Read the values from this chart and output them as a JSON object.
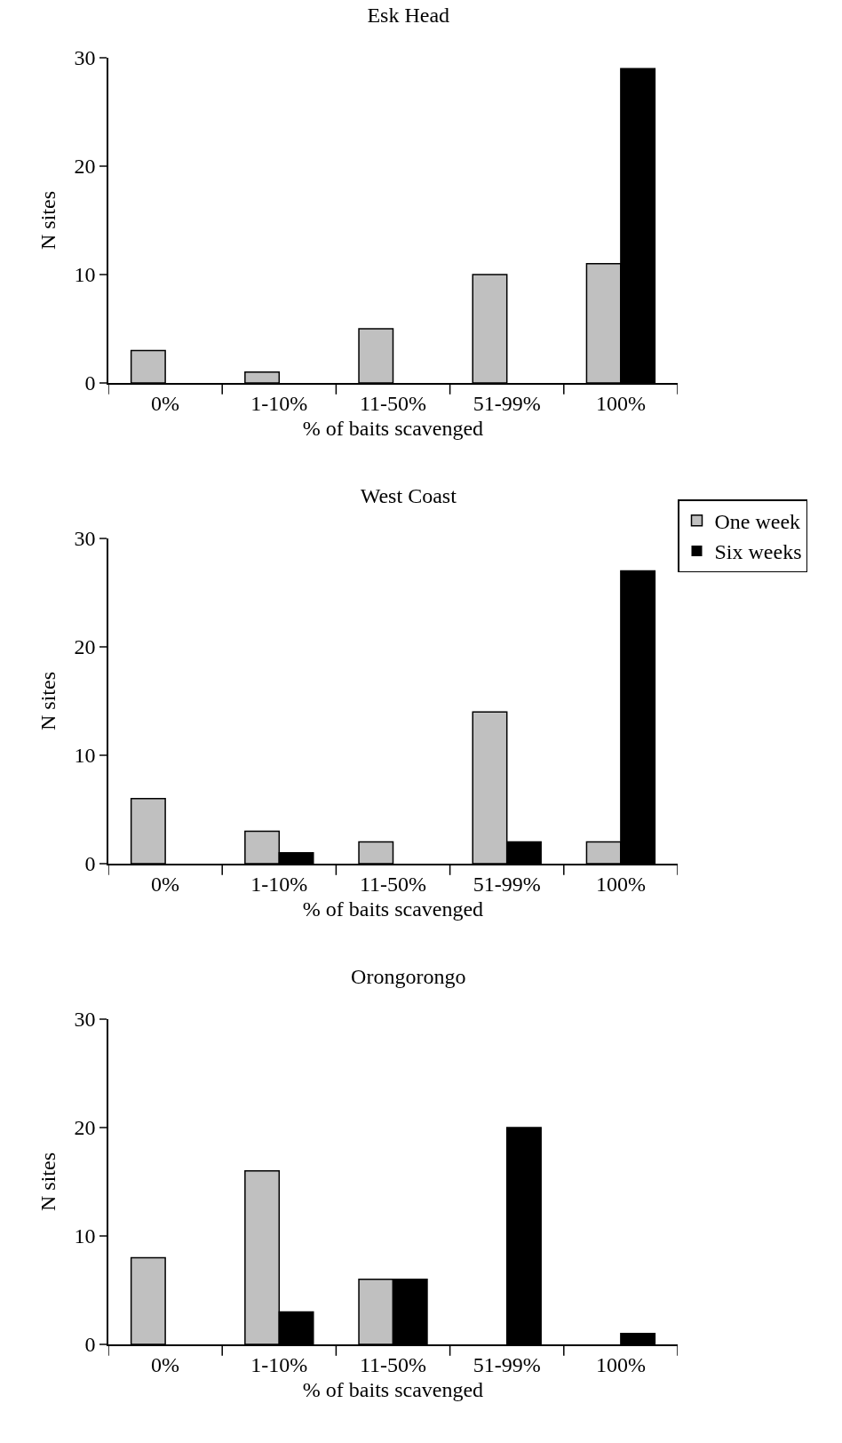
{
  "chart_data": [
    {
      "type": "bar",
      "title": "Esk Head",
      "xlabel": "% of baits scavenged",
      "ylabel": "N sites",
      "categories": [
        "0%",
        "1-10%",
        "11-50%",
        "51-99%",
        "100%"
      ],
      "series": [
        {
          "color": "#c0c0c0",
          "values": [
            3,
            1,
            5,
            10,
            11
          ]
        },
        {
          "color": "#000000",
          "values": [
            0,
            0,
            0,
            0,
            29
          ]
        }
      ],
      "ylim": [
        0,
        30
      ],
      "yticks": [
        0,
        10,
        20,
        30
      ],
      "grid": false,
      "legend": false
    },
    {
      "type": "bar",
      "title": "West Coast",
      "xlabel": "% of baits scavenged",
      "ylabel": "N sites",
      "categories": [
        "0%",
        "1-10%",
        "11-50%",
        "51-99%",
        "100%"
      ],
      "series": [
        {
          "name": "One week",
          "color": "#c0c0c0",
          "values": [
            6,
            3,
            2,
            14,
            2
          ]
        },
        {
          "name": "Six weeks",
          "color": "#000000",
          "values": [
            0,
            1,
            0,
            2,
            27
          ]
        }
      ],
      "ylim": [
        0,
        30
      ],
      "yticks": [
        0,
        10,
        20,
        30
      ],
      "grid": false,
      "legend": "top right"
    },
    {
      "type": "bar",
      "title": "Orongorongo",
      "xlabel": "% of baits scavenged",
      "ylabel": "N sites",
      "categories": [
        "0%",
        "1-10%",
        "11-50%",
        "51-99%",
        "100%"
      ],
      "series": [
        {
          "color": "#c0c0c0",
          "values": [
            8,
            16,
            6,
            0,
            0
          ]
        },
        {
          "color": "#000000",
          "values": [
            0,
            3,
            6,
            20,
            1
          ]
        }
      ],
      "ylim": [
        0,
        30
      ],
      "yticks": [
        0,
        10,
        20,
        30
      ],
      "grid": false,
      "legend": false
    }
  ]
}
